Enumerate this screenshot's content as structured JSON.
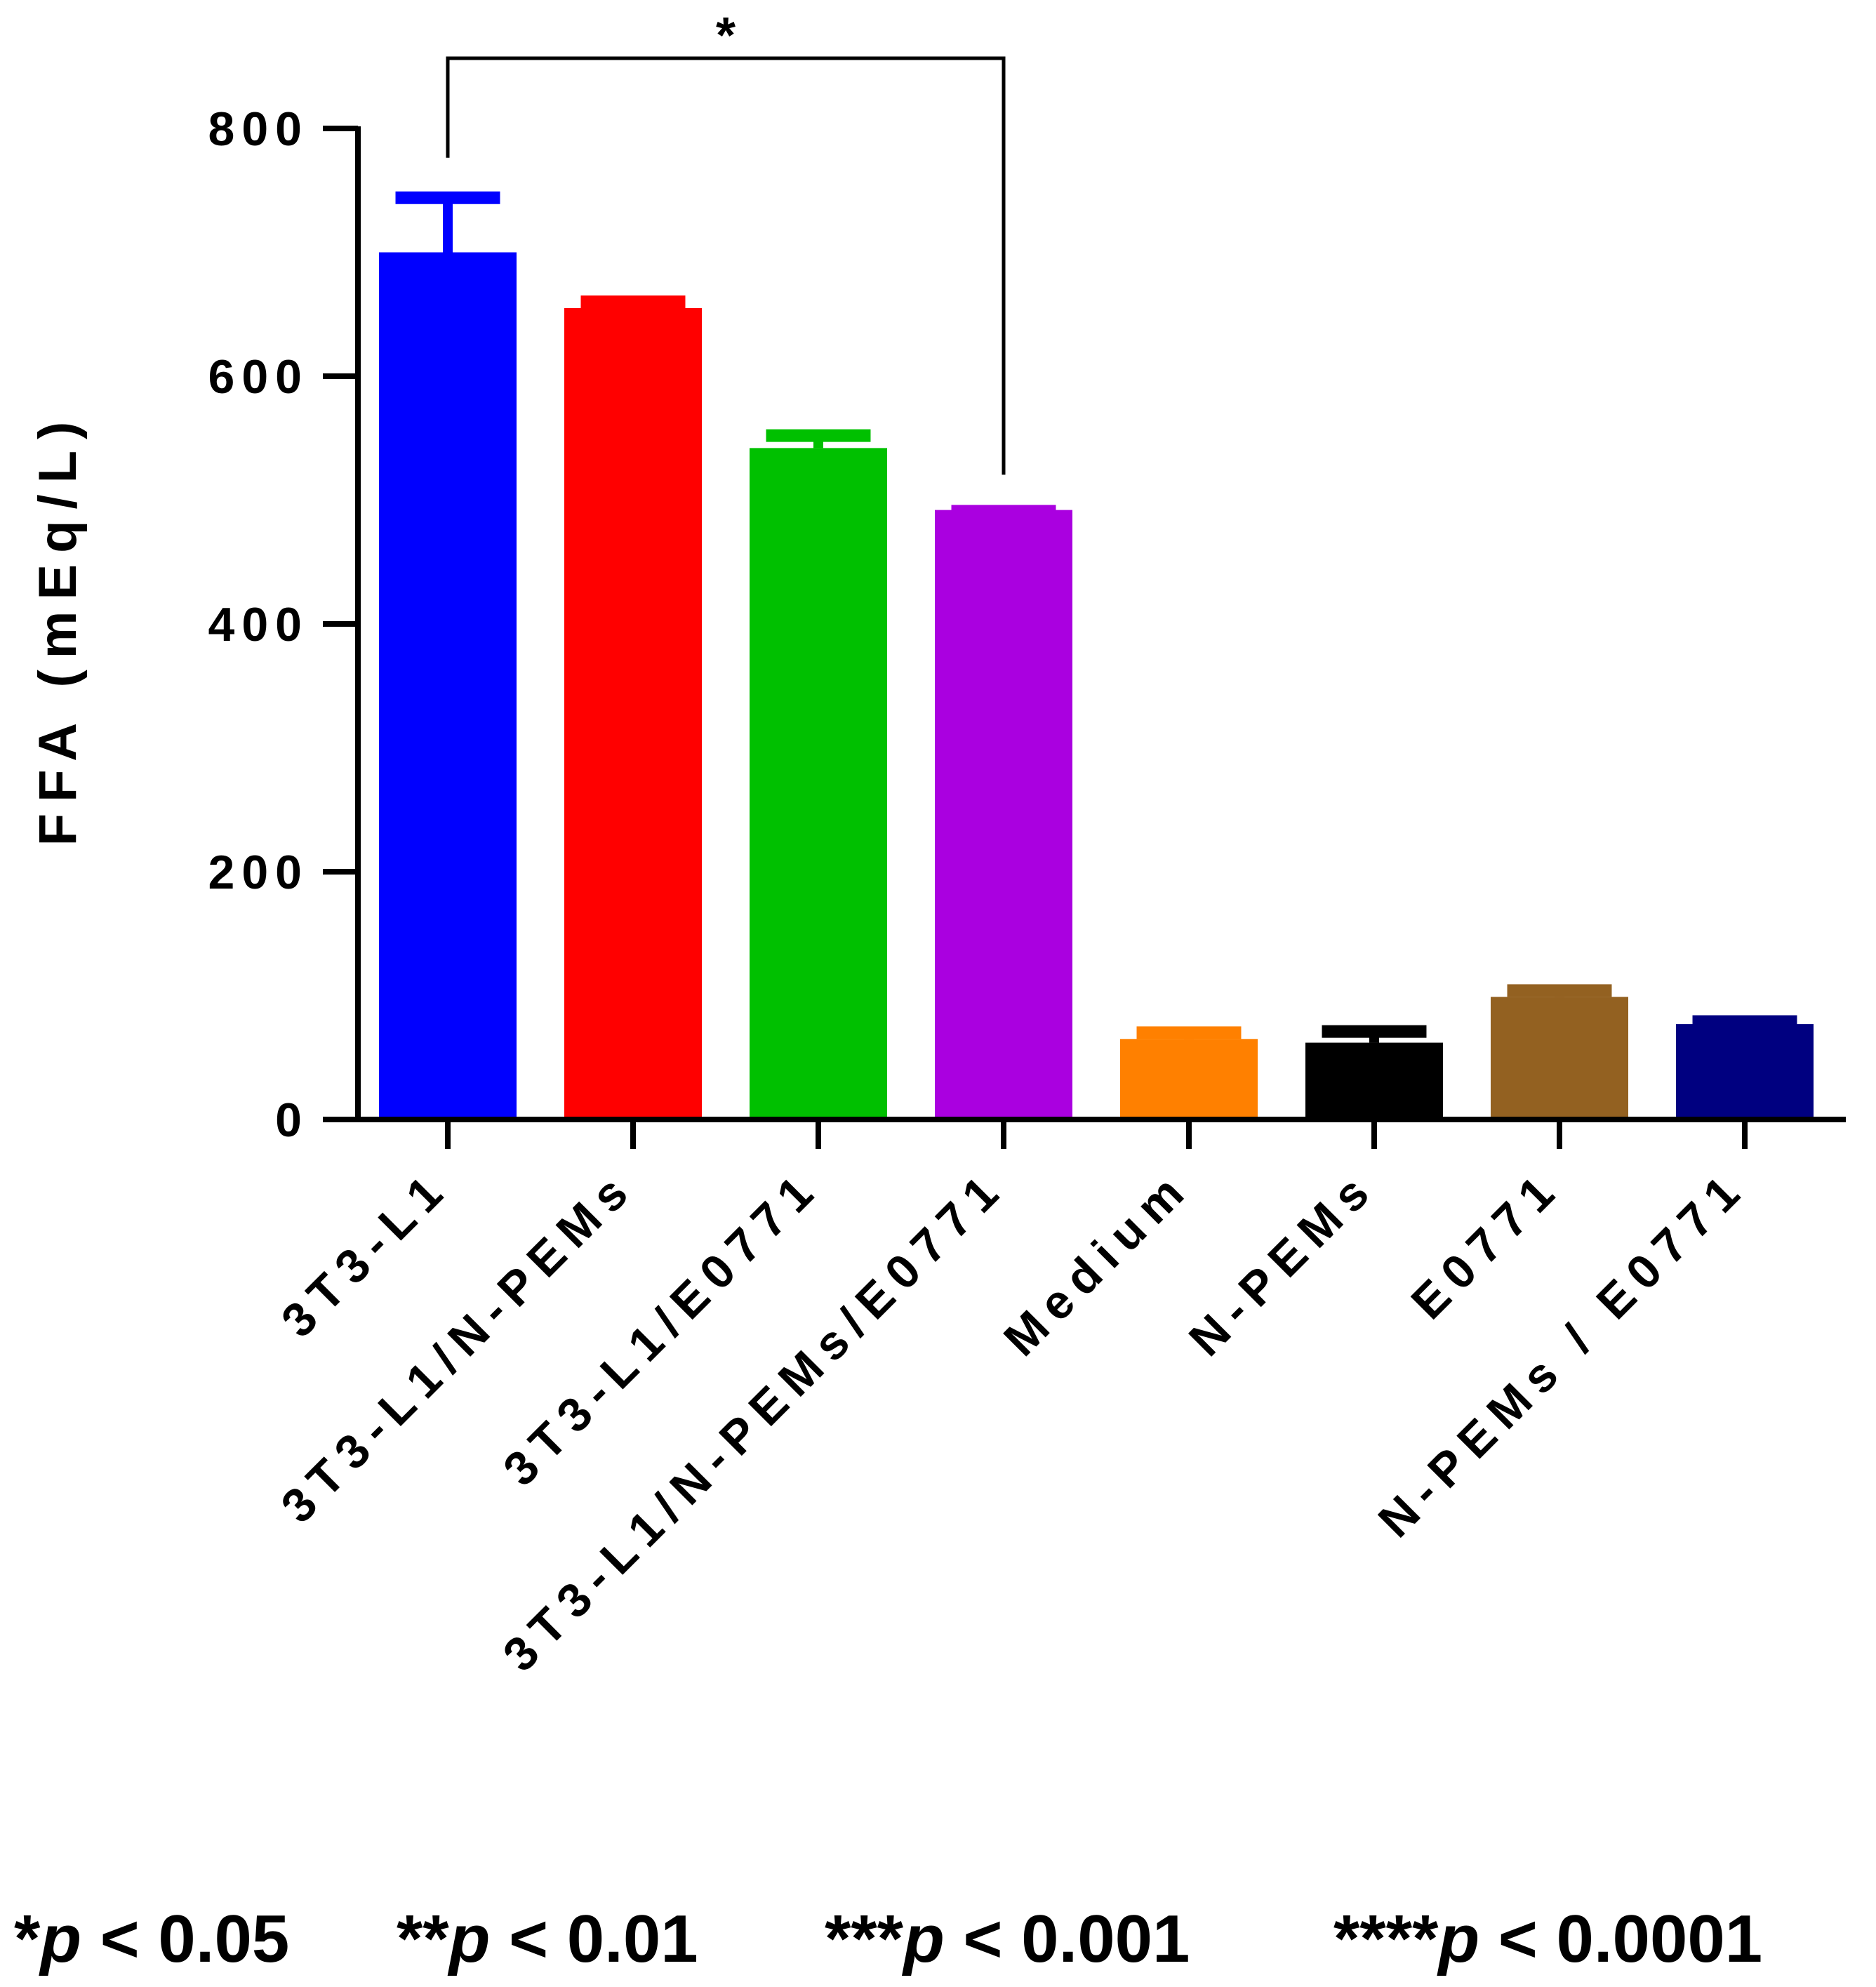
{
  "chart_data": {
    "type": "bar",
    "ylabel": "FFA (mEq/L)",
    "xlabel": "",
    "ylim": [
      0,
      800
    ],
    "yticks": [
      0,
      200,
      400,
      600,
      800
    ],
    "grid": false,
    "legend": "none",
    "categories": [
      "3T3-L1",
      "3T3-L1/N-PEMs",
      "3T3-L1/E0771",
      "3T3-L1/N-PEMs/E0771",
      "Medium",
      "N-PEMs",
      "E0771",
      "N-PEMs / E0771"
    ],
    "values": [
      700,
      655,
      542,
      492,
      65,
      62,
      99,
      77
    ],
    "errors": [
      48,
      9,
      14,
      3,
      9,
      13,
      9,
      6
    ],
    "colors": [
      "#0000FF",
      "#FF0000",
      "#00C000",
      "#AA00E0",
      "#FF8000",
      "#000000",
      "#936121",
      "#000080"
    ],
    "significance": [
      {
        "from": 0,
        "to": 3,
        "label": "*"
      }
    ]
  },
  "footnote": {
    "items": [
      {
        "stars": "*",
        "p": "p",
        "rest": " < 0.05"
      },
      {
        "stars": "**",
        "p": "p",
        "rest": " < 0.01"
      },
      {
        "stars": "***",
        "p": "p",
        "rest": " < 0.001"
      },
      {
        "stars": "****",
        "p": "p",
        "rest": " < 0.0001"
      }
    ]
  }
}
